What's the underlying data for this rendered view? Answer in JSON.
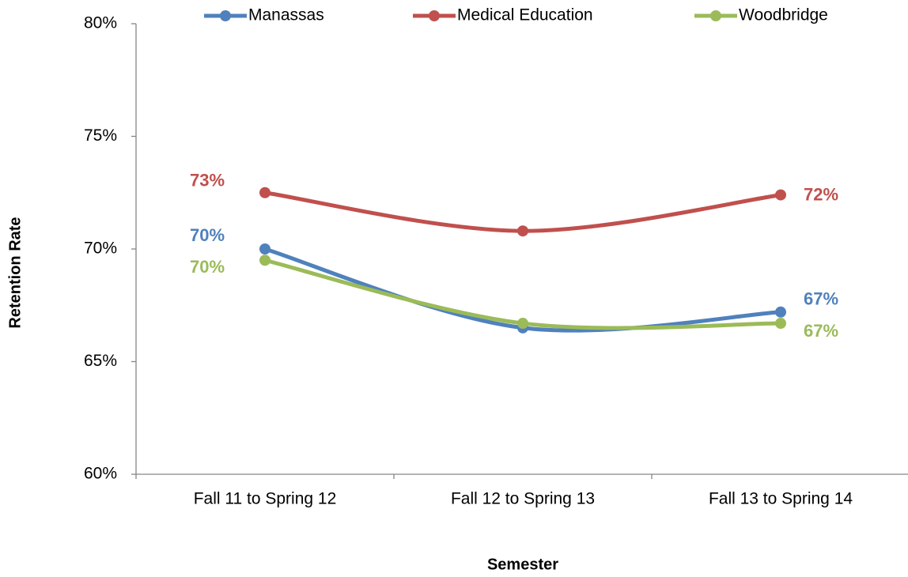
{
  "chart_data": {
    "type": "line",
    "x_label": "Semester",
    "y_label": "Retention Rate",
    "categories": [
      "Fall 11 to Spring 12",
      "Fall 12 to Spring 13",
      "Fall 13 to Spring 14"
    ],
    "series": [
      {
        "name": "Manassas",
        "color": "#4f81bd",
        "values": [
          70,
          66.5,
          67.2
        ],
        "value_labels": [
          "70%",
          null,
          "67%"
        ]
      },
      {
        "name": "Medical Education",
        "color": "#c0504d",
        "values": [
          72.5,
          70.8,
          72.4
        ],
        "value_labels": [
          "73%",
          null,
          "72%"
        ]
      },
      {
        "name": "Woodbridge",
        "color": "#9bbb59",
        "values": [
          69.5,
          66.7,
          66.7
        ],
        "value_labels": [
          "70%",
          null,
          "67%"
        ]
      }
    ],
    "ylim": [
      60,
      80
    ],
    "yticks": [
      {
        "value": 60,
        "label": "60%"
      },
      {
        "value": 65,
        "label": "65%"
      },
      {
        "value": 70,
        "label": "70%"
      },
      {
        "value": 75,
        "label": "75%"
      },
      {
        "value": 80,
        "label": "80%"
      }
    ],
    "grid": false,
    "smooth": true,
    "legend": "top"
  }
}
